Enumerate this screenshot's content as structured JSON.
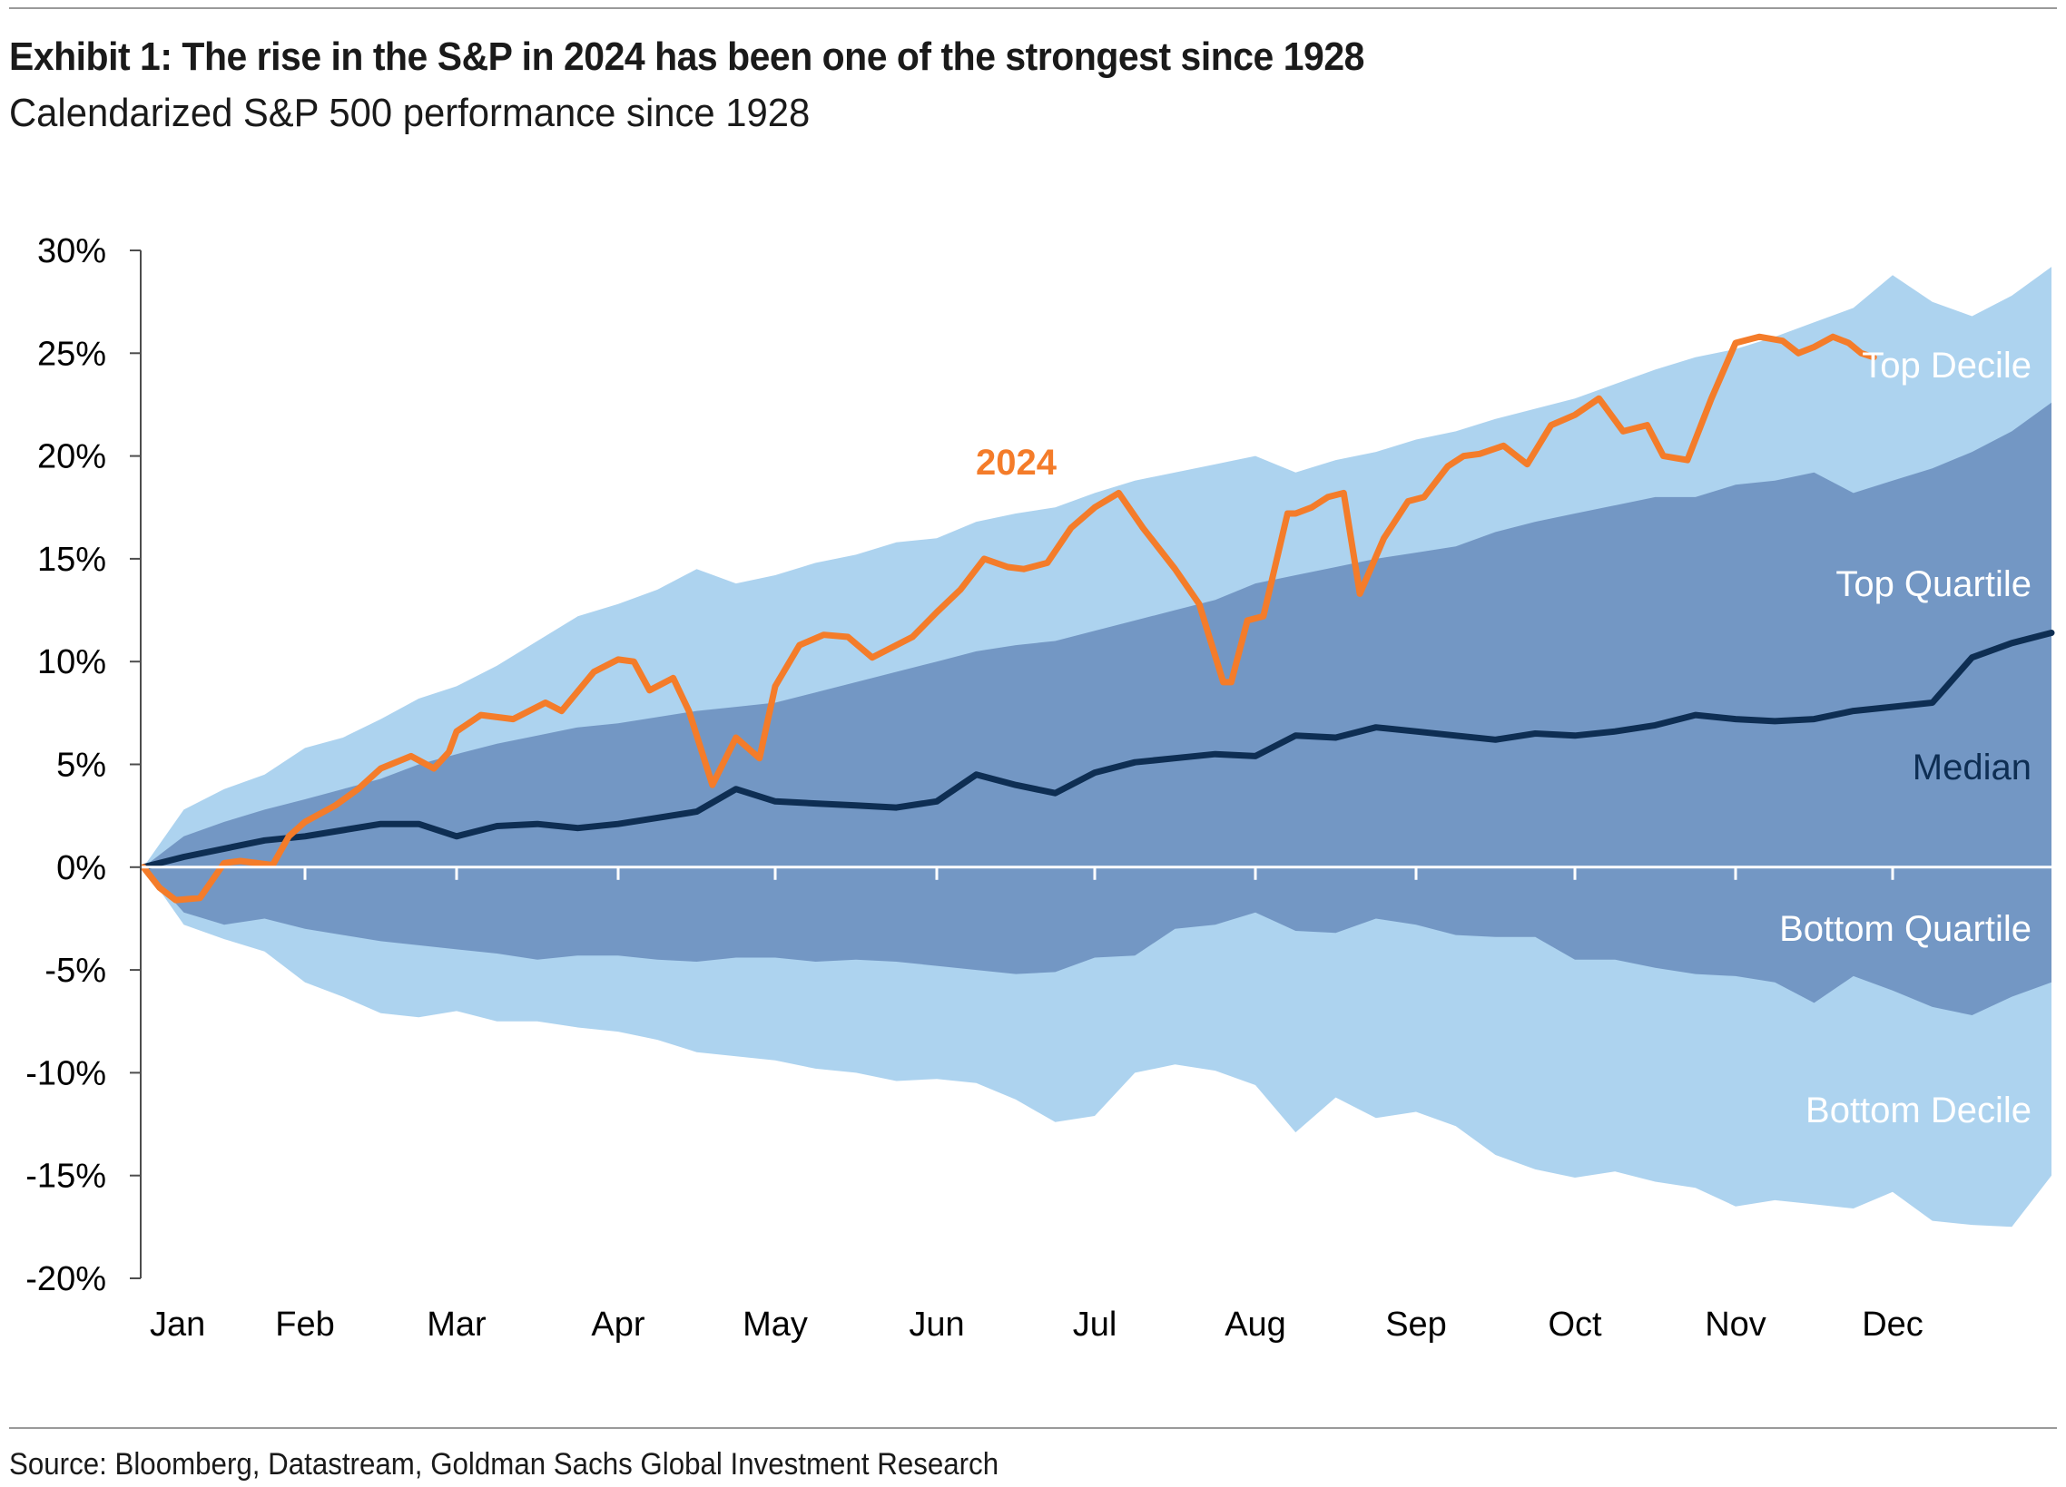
{
  "title": "Exhibit 1: The rise in the S&P in 2024 has been one of the strongest since 1928",
  "subtitle": "Calendarized S&P 500 performance since 1928",
  "source": "Source: Bloomberg, Datastream, Goldman Sachs Global Investment Research",
  "colors": {
    "decile_band": "#add3ef",
    "quartile_band": "#7397c4",
    "median_line": "#0e2e53",
    "line_2024": "#f47c2a",
    "band_label_light": "#ffffff",
    "band_label_dark": "#0e2e53",
    "axis": "#000000",
    "zero_line": "#ffffff"
  },
  "chart_data": {
    "type": "area",
    "x_label_type": "month",
    "ylim": [
      -20,
      30
    ],
    "yticks": [
      30,
      25,
      20,
      15,
      10,
      5,
      0,
      -5,
      -10,
      -15,
      -20
    ],
    "ytick_labels": [
      "30%",
      "25%",
      "20%",
      "15%",
      "10%",
      "5%",
      "0%",
      "-5%",
      "-10%",
      "-15%",
      "-20%"
    ],
    "months": [
      "Jan",
      "Feb",
      "Mar",
      "Apr",
      "May",
      "Jun",
      "Jul",
      "Aug",
      "Sep",
      "Oct",
      "Nov",
      "Dec"
    ],
    "grid": false,
    "band_labels": {
      "top_decile": "Top Decile",
      "top_quartile": "Top Quartile",
      "median": "Median",
      "bottom_quartile": "Bottom Quartile",
      "bottom_decile": "Bottom Decile"
    },
    "annotation_2024": "2024",
    "x_months": [
      0,
      0.25,
      0.5,
      0.75,
      1,
      1.25,
      1.5,
      1.75,
      2,
      2.25,
      2.5,
      2.75,
      3,
      3.25,
      3.5,
      3.75,
      4,
      4.25,
      4.5,
      4.75,
      5,
      5.25,
      5.5,
      5.75,
      6,
      6.25,
      6.5,
      6.75,
      7,
      7.25,
      7.5,
      7.75,
      8,
      8.25,
      8.5,
      8.75,
      9,
      9.25,
      9.5,
      9.75,
      10,
      10.25,
      10.5,
      10.75,
      11,
      11.25,
      11.5,
      11.75,
      12
    ],
    "series": [
      {
        "name": "Top Decile",
        "values": [
          0,
          2.8,
          3.8,
          4.5,
          5.8,
          6.3,
          7.2,
          8.2,
          8.8,
          9.8,
          11,
          12.2,
          12.8,
          13.5,
          14.5,
          13.8,
          14.2,
          14.8,
          15.2,
          15.8,
          16,
          16.8,
          17.2,
          17.5,
          18.2,
          18.8,
          19.2,
          19.6,
          20,
          19.2,
          19.8,
          20.2,
          20.8,
          21.2,
          21.8,
          22.3,
          22.8,
          23.5,
          24.2,
          24.8,
          25.2,
          25.8,
          26.5,
          27.2,
          28.8,
          27.5,
          26.8,
          27.8,
          29.2
        ]
      },
      {
        "name": "Top Quartile",
        "values": [
          0,
          1.5,
          2.2,
          2.8,
          3.3,
          3.8,
          4.3,
          5,
          5.5,
          6,
          6.4,
          6.8,
          7,
          7.3,
          7.6,
          7.8,
          8,
          8.5,
          9,
          9.5,
          10,
          10.5,
          10.8,
          11,
          11.5,
          12,
          12.5,
          13,
          13.8,
          14.2,
          14.6,
          15,
          15.3,
          15.6,
          16.3,
          16.8,
          17.2,
          17.6,
          18,
          18,
          18.6,
          18.8,
          19.2,
          18.2,
          18.8,
          19.4,
          20.2,
          21.2,
          22.6
        ]
      },
      {
        "name": "Median",
        "values": [
          0,
          0.5,
          0.9,
          1.3,
          1.5,
          1.8,
          2.1,
          2.1,
          1.5,
          2,
          2.1,
          1.9,
          2.1,
          2.4,
          2.7,
          3.8,
          3.2,
          3.1,
          3,
          2.9,
          3.2,
          4.5,
          4,
          3.6,
          4.6,
          5.1,
          5.3,
          5.5,
          5.4,
          6.4,
          6.3,
          6.8,
          6.6,
          6.4,
          6.2,
          6.5,
          6.4,
          6.6,
          6.9,
          7.4,
          7.2,
          7.1,
          7.2,
          7.6,
          7.8,
          8,
          10.2,
          10.9,
          11.4
        ]
      },
      {
        "name": "Bottom Quartile",
        "values": [
          0,
          -2.2,
          -2.8,
          -2.5,
          -3,
          -3.3,
          -3.6,
          -3.8,
          -4,
          -4.2,
          -4.5,
          -4.3,
          -4.3,
          -4.5,
          -4.6,
          -4.4,
          -4.4,
          -4.6,
          -4.5,
          -4.6,
          -4.8,
          -5,
          -5.2,
          -5.1,
          -4.4,
          -4.3,
          -3,
          -2.8,
          -2.2,
          -3.1,
          -3.2,
          -2.5,
          -2.8,
          -3.3,
          -3.4,
          -3.4,
          -4.5,
          -4.5,
          -4.9,
          -5.2,
          -5.3,
          -5.6,
          -6.6,
          -5.3,
          -6,
          -6.8,
          -7.2,
          -6.3,
          -5.6
        ]
      },
      {
        "name": "Bottom Decile",
        "values": [
          0,
          -2.8,
          -3.5,
          -4.1,
          -5.6,
          -6.3,
          -7.1,
          -7.3,
          -7,
          -7.5,
          -7.5,
          -7.8,
          -8,
          -8.4,
          -9,
          -9.2,
          -9.4,
          -9.8,
          -10,
          -10.4,
          -10.3,
          -10.5,
          -11.3,
          -12.4,
          -12.1,
          -10,
          -9.6,
          -9.9,
          -10.6,
          -12.9,
          -11.2,
          -12.2,
          -11.9,
          -12.6,
          -14,
          -14.7,
          -15.1,
          -14.8,
          -15.3,
          -15.6,
          -16.5,
          -16.2,
          -16.4,
          -16.6,
          -15.8,
          -17.2,
          -17.4,
          -17.5,
          -15
        ]
      },
      {
        "name": "2024",
        "x": [
          0,
          0.1,
          0.2,
          0.35,
          0.5,
          0.6,
          0.8,
          0.9,
          1,
          1.2,
          1.35,
          1.5,
          1.7,
          1.85,
          1.95,
          2,
          2.15,
          2.35,
          2.55,
          2.65,
          2.85,
          3,
          3.1,
          3.2,
          3.35,
          3.45,
          3.6,
          3.75,
          3.9,
          4,
          4.15,
          4.3,
          4.45,
          4.6,
          4.75,
          4.85,
          5,
          5.15,
          5.3,
          5.45,
          5.55,
          5.7,
          5.85,
          6,
          6.15,
          6.3,
          6.5,
          6.65,
          6.8,
          6.85,
          6.95,
          7.05,
          7.2,
          7.25,
          7.35,
          7.45,
          7.55,
          7.65,
          7.8,
          7.95,
          8.05,
          8.2,
          8.3,
          8.4,
          8.55,
          8.7,
          8.85,
          9,
          9.15,
          9.3,
          9.45,
          9.55,
          9.7,
          9.85,
          10,
          10.15,
          10.3,
          10.4,
          10.5,
          10.62,
          10.72,
          10.8,
          10.88
        ],
        "values": [
          0,
          -1,
          -1.6,
          -1.5,
          0.2,
          0.3,
          0.1,
          1.5,
          2.2,
          3,
          3.8,
          4.8,
          5.4,
          4.8,
          5.6,
          6.6,
          7.4,
          7.2,
          8,
          7.6,
          9.5,
          10.1,
          10,
          8.6,
          9.2,
          7.6,
          4,
          6.3,
          5.3,
          8.8,
          10.8,
          11.3,
          11.2,
          10.2,
          10.8,
          11.2,
          12.4,
          13.5,
          15,
          14.6,
          14.5,
          14.8,
          16.5,
          17.5,
          18.2,
          16.5,
          14.5,
          12.8,
          9,
          9,
          12,
          12.2,
          17.2,
          17.2,
          17.5,
          18,
          18.2,
          13.3,
          16,
          17.8,
          18,
          19.5,
          20,
          20.1,
          20.5,
          19.6,
          21.5,
          22,
          22.8,
          21.2,
          21.5,
          20,
          19.8,
          22.8,
          25.5,
          25.8,
          25.6,
          25,
          25.3,
          25.8,
          25.5,
          25,
          24.8
        ]
      }
    ]
  }
}
